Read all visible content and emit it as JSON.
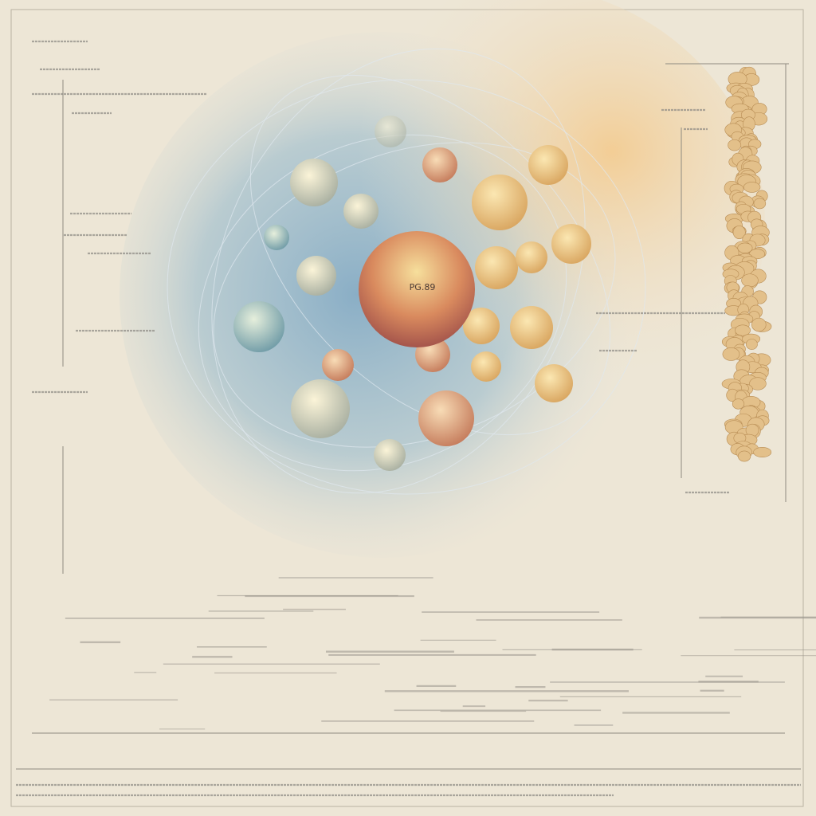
{
  "illustration": {
    "center_label": "PG.89"
  }
}
